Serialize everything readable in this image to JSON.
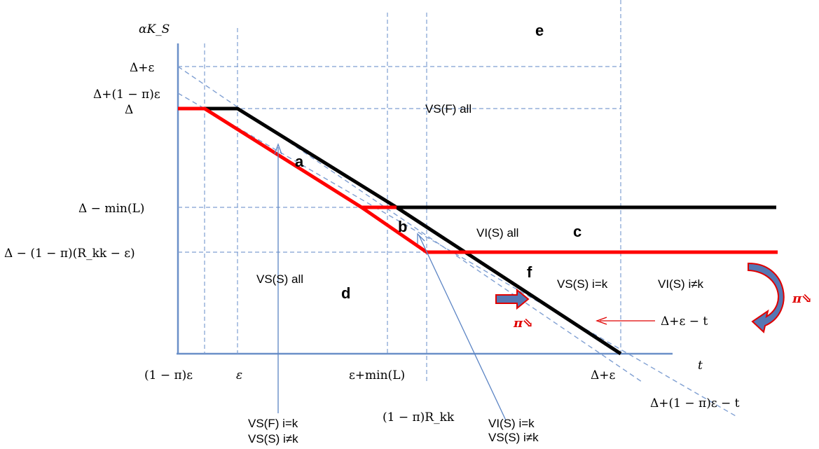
{
  "axes": {
    "y_label": "αK_S",
    "x_label": "t",
    "y_ticks": [
      "Δ+ε",
      "Δ+(1 − π)ε",
      "Δ",
      "Δ − min(L)",
      "Δ − (1 − π)(R_kk − ε)"
    ],
    "x_ticks": [
      "(1 − π)ε",
      "ε",
      "ε+min(L)",
      "Δ+ε",
      "(1 − π)R_kk"
    ]
  },
  "regions": [
    "a",
    "b",
    "c",
    "d",
    "e",
    "f"
  ],
  "zone_labels": {
    "vs_f_all": "VS(F) all",
    "vi_s_all": "VI(S) all",
    "vs_s_all": "VS(S) all",
    "vs_s_ik": "VS(S) i=k",
    "vi_s_inotk": "VI(S) i≠k"
  },
  "annotations": {
    "bottom_left_1": "VS(F) i=k",
    "bottom_left_2": "VS(S) i≠k",
    "bottom_mid_1": "VI(S) i=k",
    "bottom_mid_2": "VS(S) i≠k",
    "line_eq_1": "Δ+ε − t",
    "line_eq_2": "Δ+(1 − π)ε − t",
    "pi_arrow_1": "π⇘",
    "pi_arrow_2": "π⇘"
  },
  "colors": {
    "axis": "#6a8fc8",
    "guide": "#7f9fd2",
    "black_curve": "#000000",
    "red_curve": "#ff0000",
    "arrow_fill": "#5677b3",
    "arrow_outline": "#e00000"
  }
}
